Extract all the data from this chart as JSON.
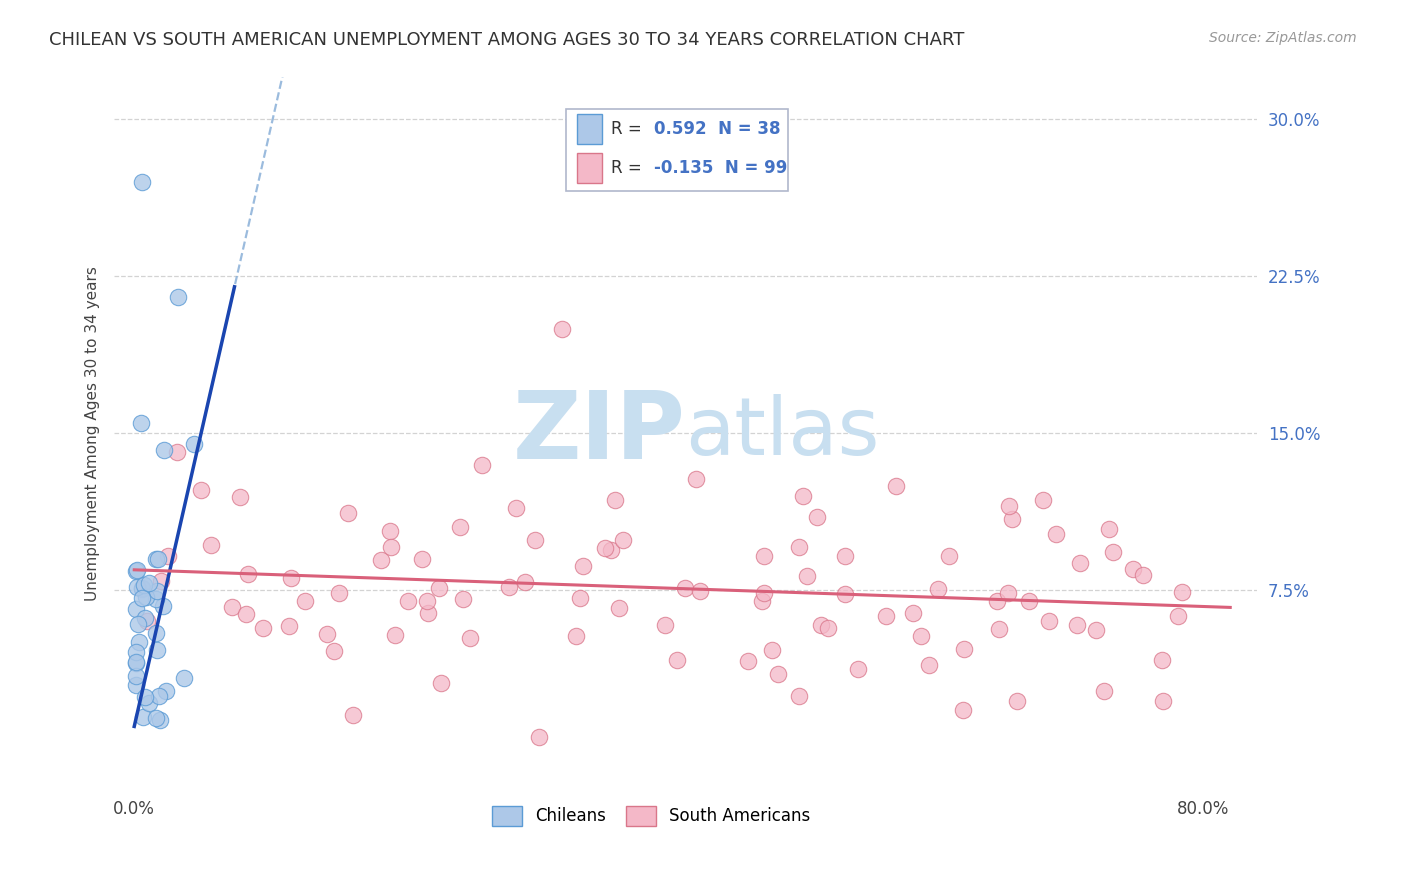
{
  "title": "CHILEAN VS SOUTH AMERICAN UNEMPLOYMENT AMONG AGES 30 TO 34 YEARS CORRELATION CHART",
  "source": "Source: ZipAtlas.com",
  "ylabel": "Unemployment Among Ages 30 to 34 years",
  "chilean_R": 0.592,
  "chilean_N": 38,
  "southam_R": -0.135,
  "southam_N": 99,
  "chilean_color": "#adc8e8",
  "chilean_edge": "#5b9bd5",
  "southam_color": "#f4b8c8",
  "southam_edge": "#d9768a",
  "trend_chilean_color": "#1a45b0",
  "trend_southam_color": "#d9607a",
  "dash_color": "#8ab0d8",
  "watermark_zip_color": "#c8dff0",
  "watermark_atlas_color": "#c8dff0",
  "background_color": "#ffffff",
  "grid_color": "#c8c8c8",
  "title_fontsize": 13,
  "source_fontsize": 10,
  "label_fontsize": 11,
  "tick_fontsize": 12,
  "legend_fontsize": 12,
  "right_tick_color": "#4472c4",
  "seed": 7
}
